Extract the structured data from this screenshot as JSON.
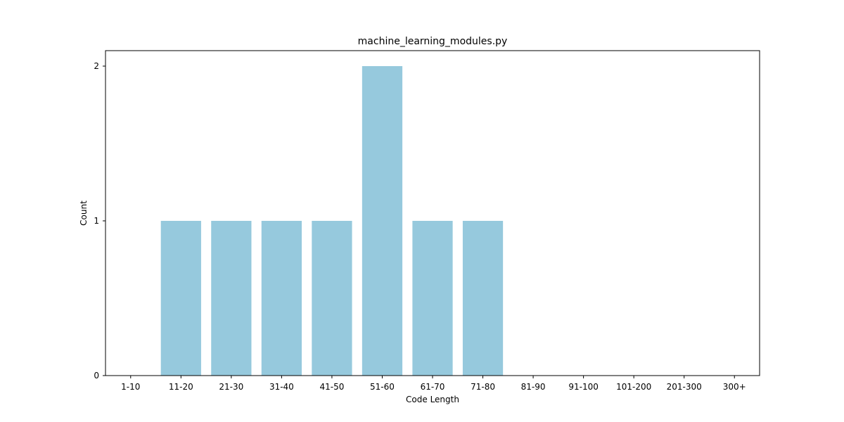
{
  "chart_data": {
    "type": "bar",
    "title": "machine_learning_modules.py",
    "xlabel": "Code Length",
    "ylabel": "Count",
    "categories": [
      "1-10",
      "11-20",
      "21-30",
      "31-40",
      "41-50",
      "51-60",
      "61-70",
      "71-80",
      "81-90",
      "91-100",
      "101-200",
      "201-300",
      "300+"
    ],
    "values": [
      0,
      1,
      1,
      1,
      1,
      2,
      1,
      1,
      0,
      0,
      0,
      0,
      0
    ],
    "ylim": [
      0,
      2.1
    ],
    "yticks": [
      0,
      1,
      2
    ],
    "bar_color": "#96c9dd",
    "grid": false,
    "legend": "none"
  }
}
